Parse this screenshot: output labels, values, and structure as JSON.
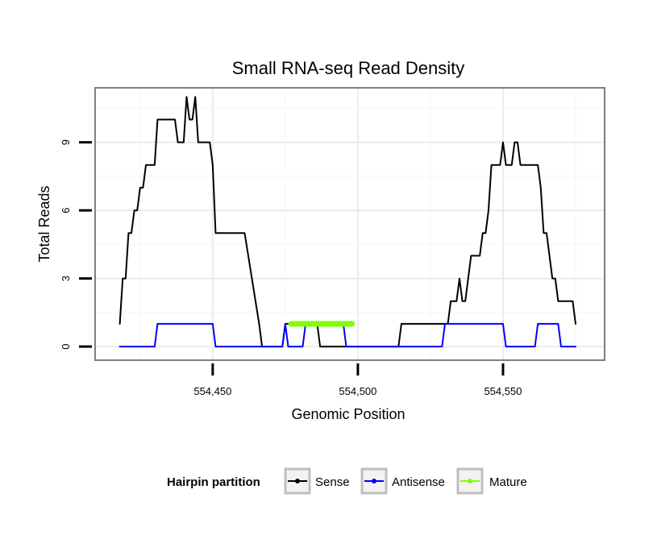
{
  "chart_data": {
    "type": "line",
    "title": "Small RNA-seq Read Density",
    "xlabel": "Genomic Position",
    "ylabel": "Total Reads",
    "xlim": [
      554409.5,
      554585
    ],
    "ylim": [
      -0.6,
      11.4
    ],
    "x_ticks": [
      554450,
      554500,
      554550
    ],
    "x_tick_labels": [
      "554,450",
      "554,500",
      "554,550"
    ],
    "y_ticks": [
      0,
      3,
      6,
      9
    ],
    "y_tick_labels": [
      "0",
      "3",
      "6",
      "9"
    ],
    "grid": true,
    "legend": {
      "title": "Hairpin partition",
      "position": "bottom",
      "entries": [
        "Sense",
        "Antisense",
        "Mature"
      ]
    },
    "series": [
      {
        "name": "Sense",
        "color": "#000000",
        "points": [
          [
            554418,
            1
          ],
          [
            554419,
            3
          ],
          [
            554420,
            3
          ],
          [
            554421,
            5
          ],
          [
            554422,
            5
          ],
          [
            554423,
            6
          ],
          [
            554424,
            6
          ],
          [
            554425,
            7
          ],
          [
            554426,
            7
          ],
          [
            554427,
            8
          ],
          [
            554430,
            8
          ],
          [
            554431,
            10
          ],
          [
            554437,
            10
          ],
          [
            554438,
            9
          ],
          [
            554440,
            9
          ],
          [
            554441,
            11
          ],
          [
            554442,
            10
          ],
          [
            554443,
            10
          ],
          [
            554444,
            11
          ],
          [
            554445,
            9
          ],
          [
            554449,
            9
          ],
          [
            554450,
            8
          ],
          [
            554451,
            5
          ],
          [
            554461,
            5
          ],
          [
            554466,
            1
          ],
          [
            554467,
            0
          ],
          [
            554474,
            0
          ],
          [
            554475,
            1
          ],
          [
            554486,
            1
          ],
          [
            554487,
            0
          ],
          [
            554514,
            0
          ],
          [
            554515,
            1
          ],
          [
            554531,
            1
          ],
          [
            554532,
            2
          ],
          [
            554534,
            2
          ],
          [
            554535,
            3
          ],
          [
            554536,
            2
          ],
          [
            554537,
            2
          ],
          [
            554538,
            3
          ],
          [
            554539,
            4
          ],
          [
            554542,
            4
          ],
          [
            554543,
            5
          ],
          [
            554544,
            5
          ],
          [
            554545,
            6
          ],
          [
            554546,
            8
          ],
          [
            554549,
            8
          ],
          [
            554550,
            9
          ],
          [
            554551,
            8
          ],
          [
            554553,
            8
          ],
          [
            554554,
            9
          ],
          [
            554555,
            9
          ],
          [
            554556,
            8
          ],
          [
            554562,
            8
          ],
          [
            554563,
            7
          ],
          [
            554564,
            5
          ],
          [
            554565,
            5
          ],
          [
            554567,
            3
          ],
          [
            554568,
            3
          ],
          [
            554569,
            2
          ],
          [
            554574,
            2
          ],
          [
            554575,
            1
          ]
        ]
      },
      {
        "name": "Antisense",
        "color": "#0000ff",
        "points": [
          [
            554418,
            0
          ],
          [
            554430,
            0
          ],
          [
            554431,
            1
          ],
          [
            554450,
            1
          ],
          [
            554451,
            0
          ],
          [
            554474,
            0
          ],
          [
            554475,
            1
          ],
          [
            554476,
            0
          ],
          [
            554481,
            0
          ],
          [
            554482,
            1
          ],
          [
            554495,
            1
          ],
          [
            554496,
            0
          ],
          [
            554529,
            0
          ],
          [
            554530,
            1
          ],
          [
            554550,
            1
          ],
          [
            554551,
            0
          ],
          [
            554561,
            0
          ],
          [
            554562,
            1
          ],
          [
            554569,
            1
          ],
          [
            554570,
            0
          ],
          [
            554575,
            0
          ]
        ]
      },
      {
        "name": "Mature",
        "color": "#7fff00",
        "points": [
          [
            554477,
            1
          ],
          [
            554498,
            1
          ]
        ]
      }
    ]
  }
}
